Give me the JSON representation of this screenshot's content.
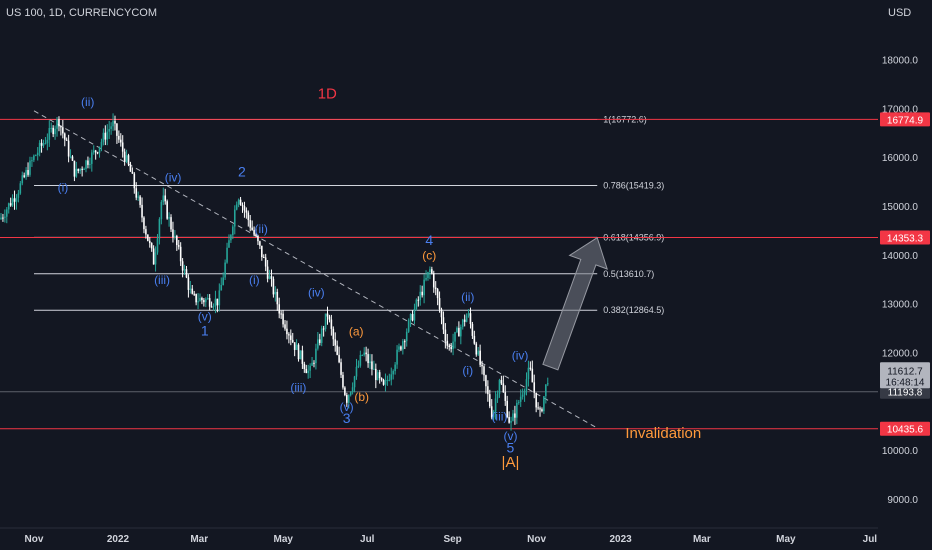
{
  "header": {
    "symbol": "US 100, 1D, CURRENCYCOM",
    "currency": "USD",
    "timeframe_label": "1D"
  },
  "colors": {
    "background": "#131722",
    "up": "#26a69a",
    "down": "#ffffff",
    "red_line": "#f23645",
    "fib_line": "#d1d4dc",
    "wave_blue": "#4a7ff0",
    "wave_orange": "#ff9a3c",
    "arrow": "#787b86"
  },
  "chart_data": {
    "type": "candlestick",
    "title": "US 100, 1D, CURRENCYCOM",
    "ylabel": "USD",
    "ylim": [
      8500,
      19300
    ],
    "y_ticks": [
      "18000.0",
      "17000.0",
      "16000.0",
      "15000.0",
      "14000.0",
      "13000.0",
      "12000.0",
      "10000.0",
      "9000.0"
    ],
    "x_ticks": [
      "Nov",
      "2022",
      "Mar",
      "May",
      "Jul",
      "Sep",
      "Nov",
      "2023",
      "Mar",
      "May",
      "Jul"
    ],
    "x_tick_dates": [
      "2021-11-01",
      "2022-01-01",
      "2022-03-01",
      "2022-05-01",
      "2022-07-01",
      "2022-09-01",
      "2022-11-01",
      "2023-01-01",
      "2023-03-01",
      "2023-05-01",
      "2023-07-01"
    ],
    "price_path": [
      {
        "date": "2021-10-01",
        "close": 14450
      },
      {
        "date": "2021-10-20",
        "close": 15300
      },
      {
        "date": "2021-11-01",
        "close": 16000
      },
      {
        "date": "2021-11-19",
        "close": 16772
      },
      {
        "date": "2021-12-01",
        "close": 15650
      },
      {
        "date": "2021-12-15",
        "close": 16100
      },
      {
        "date": "2021-12-28",
        "close": 16700
      },
      {
        "date": "2022-01-10",
        "close": 15700
      },
      {
        "date": "2022-01-27",
        "close": 13860
      },
      {
        "date": "2022-02-02",
        "close": 15200
      },
      {
        "date": "2022-02-24",
        "close": 13100
      },
      {
        "date": "2022-03-15",
        "close": 13050
      },
      {
        "date": "2022-03-29",
        "close": 15265
      },
      {
        "date": "2022-04-15",
        "close": 14050
      },
      {
        "date": "2022-04-29",
        "close": 12800
      },
      {
        "date": "2022-05-10",
        "close": 12100
      },
      {
        "date": "2022-05-20",
        "close": 11560
      },
      {
        "date": "2022-06-02",
        "close": 12800
      },
      {
        "date": "2022-06-16",
        "close": 11040
      },
      {
        "date": "2022-06-28",
        "close": 12000
      },
      {
        "date": "2022-07-13",
        "close": 11250
      },
      {
        "date": "2022-08-16",
        "close": 13720
      },
      {
        "date": "2022-08-29",
        "close": 12050
      },
      {
        "date": "2022-09-12",
        "close": 12800
      },
      {
        "date": "2022-09-30",
        "close": 10700
      },
      {
        "date": "2022-10-05",
        "close": 11500
      },
      {
        "date": "2022-10-13",
        "close": 10500
      },
      {
        "date": "2022-10-27",
        "close": 11650
      },
      {
        "date": "2022-11-03",
        "close": 10650
      },
      {
        "date": "2022-11-10",
        "close": 11612.7
      }
    ],
    "horizontal_lines": [
      {
        "price": 16774.9,
        "label": "16774.9",
        "color": "red"
      },
      {
        "price": 14353.3,
        "label": "14353.3",
        "color": "red"
      },
      {
        "price": 10435.6,
        "label": "10435.6",
        "color": "red"
      }
    ],
    "fib_levels": [
      {
        "ratio": "1",
        "price": 16772.6,
        "label": "1(16772.6)"
      },
      {
        "ratio": "0.786",
        "price": 15419.3,
        "label": "0.786(15419.3)"
      },
      {
        "ratio": "0.618",
        "price": 14356.9,
        "label": "0.618(14356.9)"
      },
      {
        "ratio": "0.5",
        "price": 13610.7,
        "label": "0.5(13610.7)"
      },
      {
        "ratio": "0.382",
        "price": 12864.5,
        "label": "0.382(12864.5)"
      }
    ],
    "fib_start_date": "2021-11-01",
    "fib_end_date": "2022-12-15",
    "last_price": {
      "value": "11612.7",
      "countdown": "16:48:14"
    },
    "price_box_grey": {
      "price": 11193.8,
      "label": "11193.8"
    },
    "trendline": [
      {
        "date": "2021-11-01",
        "price": 16950
      },
      {
        "date": "2022-12-15",
        "price": 10450
      }
    ],
    "projection_arrow": {
      "from_date": "2022-11-11",
      "from_price": 11700,
      "to_date": "2022-12-15",
      "to_price": 14350
    },
    "wave_labels": [
      {
        "text": "(ii)",
        "date": "2021-12-10",
        "price": 17050,
        "color": "blue"
      },
      {
        "text": "(i)",
        "date": "2021-11-22",
        "price": 15300,
        "color": "blue"
      },
      {
        "text": "(iv)",
        "date": "2022-02-10",
        "price": 15500,
        "color": "blue"
      },
      {
        "text": "(iii)",
        "date": "2022-02-02",
        "price": 13400,
        "color": "blue"
      },
      {
        "text": "(v)",
        "date": "2022-03-05",
        "price": 12650,
        "color": "blue"
      },
      {
        "text": "1",
        "date": "2022-03-05",
        "price": 12350,
        "color": "blue"
      },
      {
        "text": "2",
        "date": "2022-04-01",
        "price": 15600,
        "color": "blue"
      },
      {
        "text": "(ii)",
        "date": "2022-04-15",
        "price": 14450,
        "color": "blue"
      },
      {
        "text": "(i)",
        "date": "2022-04-10",
        "price": 13400,
        "color": "blue"
      },
      {
        "text": "(iv)",
        "date": "2022-05-25",
        "price": 13150,
        "color": "blue"
      },
      {
        "text": "(iii)",
        "date": "2022-05-12",
        "price": 11200,
        "color": "blue"
      },
      {
        "text": "(v)",
        "date": "2022-06-16",
        "price": 10800,
        "color": "blue"
      },
      {
        "text": "3",
        "date": "2022-06-16",
        "price": 10550,
        "color": "blue"
      },
      {
        "text": "(a)",
        "date": "2022-06-23",
        "price": 12350,
        "color": "orange"
      },
      {
        "text": "(b)",
        "date": "2022-06-27",
        "price": 11000,
        "color": "orange"
      },
      {
        "text": "4",
        "date": "2022-08-15",
        "price": 14200,
        "color": "blue"
      },
      {
        "text": "(c)",
        "date": "2022-08-15",
        "price": 13900,
        "color": "orange"
      },
      {
        "text": "(ii)",
        "date": "2022-09-12",
        "price": 13050,
        "color": "blue"
      },
      {
        "text": "(iv)",
        "date": "2022-10-20",
        "price": 11850,
        "color": "blue"
      },
      {
        "text": "(i)",
        "date": "2022-09-12",
        "price": 11550,
        "color": "blue"
      },
      {
        "text": "(iii)",
        "date": "2022-10-05",
        "price": 10600,
        "color": "blue"
      },
      {
        "text": "(v)",
        "date": "2022-10-13",
        "price": 10200,
        "color": "blue"
      },
      {
        "text": "5",
        "date": "2022-10-13",
        "price": 9950,
        "color": "blue"
      },
      {
        "text": "|A|",
        "date": "2022-10-13",
        "price": 9650,
        "color": "orange"
      }
    ],
    "annotations": [
      {
        "text": "1D",
        "date": "2022-06-02",
        "price": 17200,
        "color": "red"
      },
      {
        "text": "Invalidation",
        "date": "2023-02-01",
        "price": 10250,
        "color": "orange"
      }
    ]
  }
}
